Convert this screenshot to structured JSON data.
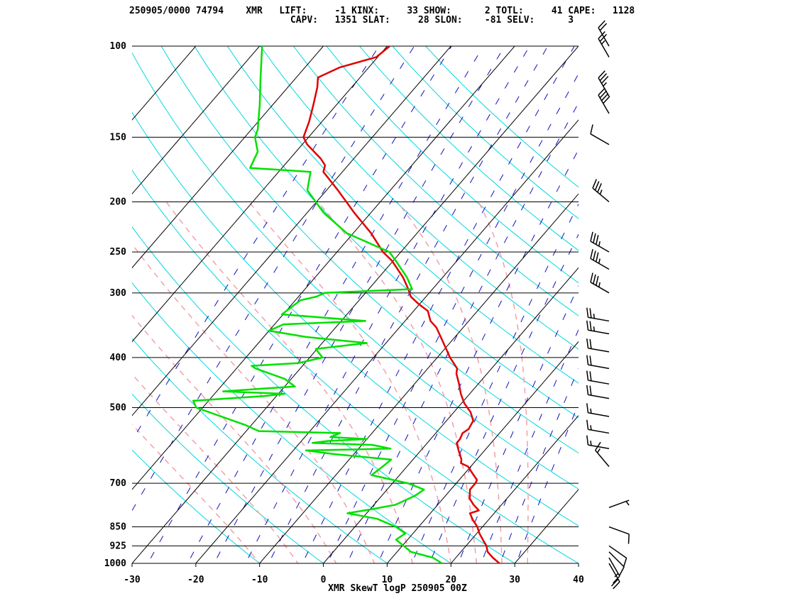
{
  "header": {
    "line1": "250905/0000 74794    XMR   LIFT:     -1 KINX:     33 SHOW:      2 TOTL:     41 CAPE:   1128",
    "line2": "                             CAPV:   1351 SLAT:     28 SLON:    -81 SELV:      3"
  },
  "caption": "XMR SkewT logP 250905 00Z",
  "colors": {
    "temperature": "#e00000",
    "dewpoint": "#00e000",
    "isotherm": "#000000",
    "isobar": "#000000",
    "dry_adiabat": "#00d8e0",
    "moist_adiabat": "#f4a0a8",
    "mixing_ratio": "#1010c0",
    "wind_barb": "#000000"
  },
  "chart_data": {
    "type": "line",
    "title": "",
    "xlabel": "",
    "ylabel": "",
    "x_scale": "skew-t",
    "y_scale": "log",
    "xlim": [
      -30,
      40
    ],
    "ylim": [
      1000,
      100
    ],
    "grid": true,
    "x_ticks": [
      "-30",
      "-20",
      "-10",
      "0",
      "10",
      "20",
      "30",
      "40"
    ],
    "y_ticks": [
      "100",
      "150",
      "200",
      "250",
      "300",
      "400",
      "500",
      "700",
      "850",
      "925",
      "1000"
    ],
    "y_tick_values": [
      100,
      150,
      200,
      250,
      300,
      400,
      500,
      700,
      850,
      925,
      1000
    ],
    "isotherms": [
      -110,
      -100,
      -90,
      -80,
      -70,
      -60,
      -50,
      -40,
      -30,
      -20,
      -10,
      0,
      10,
      20,
      30,
      40
    ],
    "dry_adiabats_theta_C": [
      -10,
      0,
      10,
      20,
      30,
      40,
      50,
      60,
      70,
      80,
      90,
      100,
      110,
      120,
      130,
      140,
      150
    ],
    "moist_adiabats_theta_w_C": [
      -10,
      -4,
      2,
      8,
      14,
      20,
      24,
      28,
      32
    ],
    "mixing_ratio_lines_g_kg": [
      0.1,
      0.2,
      0.4,
      0.7,
      1,
      1.5,
      2,
      3,
      4,
      5,
      7,
      10,
      12,
      16,
      20,
      24,
      28
    ],
    "series": [
      {
        "name": "",
        "role": "temperature",
        "points": [
          [
            1000,
            27.6
          ],
          [
            975,
            25.8
          ],
          [
            950,
            24.2
          ],
          [
            925,
            23.2
          ],
          [
            900,
            21.8
          ],
          [
            875,
            20.4
          ],
          [
            850,
            19.2
          ],
          [
            825,
            17.6
          ],
          [
            800,
            16.2
          ],
          [
            790,
            17.2
          ],
          [
            770,
            15.6
          ],
          [
            750,
            14.2
          ],
          [
            720,
            13.0
          ],
          [
            700,
            13.0
          ],
          [
            690,
            12.8
          ],
          [
            670,
            11.2
          ],
          [
            650,
            9.6
          ],
          [
            640,
            8.0
          ],
          [
            630,
            7.6
          ],
          [
            615,
            6.6
          ],
          [
            600,
            5.6
          ],
          [
            585,
            4.6
          ],
          [
            575,
            4.6
          ],
          [
            560,
            4.2
          ],
          [
            550,
            4.6
          ],
          [
            530,
            4.2
          ],
          [
            510,
            2.6
          ],
          [
            490,
            0.4
          ],
          [
            470,
            -1.4
          ],
          [
            450,
            -3.0
          ],
          [
            430,
            -4.8
          ],
          [
            420,
            -5.4
          ],
          [
            400,
            -8.0
          ],
          [
            370,
            -11.6
          ],
          [
            350,
            -14.2
          ],
          [
            340,
            -16.0
          ],
          [
            325,
            -17.8
          ],
          [
            315,
            -20.2
          ],
          [
            305,
            -22.4
          ],
          [
            295,
            -23.8
          ],
          [
            280,
            -26.2
          ],
          [
            260,
            -30.2
          ],
          [
            250,
            -32.8
          ],
          [
            230,
            -37.2
          ],
          [
            210,
            -42.6
          ],
          [
            190,
            -48.2
          ],
          [
            175,
            -53.0
          ],
          [
            170,
            -53.6
          ],
          [
            165,
            -55.2
          ],
          [
            155,
            -59.2
          ],
          [
            150,
            -60.8
          ],
          [
            140,
            -62.0
          ],
          [
            130,
            -63.6
          ],
          [
            120,
            -65.4
          ],
          [
            115,
            -66.6
          ],
          [
            110,
            -64.6
          ],
          [
            105,
            -60.2
          ],
          [
            100,
            -59.6
          ]
        ]
      },
      {
        "name": "",
        "role": "dewpoint",
        "points": [
          [
            1000,
            18.6
          ],
          [
            975,
            16.4
          ],
          [
            950,
            12.2
          ],
          [
            925,
            10.2
          ],
          [
            900,
            8.2
          ],
          [
            875,
            8.8
          ],
          [
            850,
            6.4
          ],
          [
            820,
            2.4
          ],
          [
            800,
            -3.0
          ],
          [
            785,
            0.4
          ],
          [
            770,
            3.4
          ],
          [
            740,
            5.2
          ],
          [
            720,
            5.8
          ],
          [
            700,
            2.4
          ],
          [
            675,
            -4.4
          ],
          [
            650,
            -3.8
          ],
          [
            630,
            -3.4
          ],
          [
            615,
            -13.0
          ],
          [
            605,
            -18.0
          ],
          [
            600,
            -5.0
          ],
          [
            590,
            -8.4
          ],
          [
            585,
            -18.0
          ],
          [
            580,
            -15.8
          ],
          [
            575,
            -10.0
          ],
          [
            570,
            -16.0
          ],
          [
            560,
            -15.0
          ],
          [
            555,
            -28.0
          ],
          [
            540,
            -31.0
          ],
          [
            500,
            -41.0
          ],
          [
            485,
            -42.4
          ],
          [
            475,
            -32.0
          ],
          [
            470,
            -29.0
          ],
          [
            465,
            -39.0
          ],
          [
            460,
            -34.0
          ],
          [
            455,
            -28.4
          ],
          [
            440,
            -31.0
          ],
          [
            420,
            -37.0
          ],
          [
            415,
            -38.0
          ],
          [
            410,
            -31.0
          ],
          [
            400,
            -28.0
          ],
          [
            385,
            -30.2
          ],
          [
            375,
            -23.0
          ],
          [
            365,
            -33.4
          ],
          [
            355,
            -40.0
          ],
          [
            345,
            -38.6
          ],
          [
            340,
            -26.2
          ],
          [
            330,
            -40.2
          ],
          [
            310,
            -39.2
          ],
          [
            305,
            -37.2
          ],
          [
            300,
            -36.4
          ],
          [
            295,
            -23.2
          ],
          [
            280,
            -25.6
          ],
          [
            260,
            -29.6
          ],
          [
            250,
            -31.8
          ],
          [
            230,
            -41.0
          ],
          [
            210,
            -47.4
          ],
          [
            190,
            -53.0
          ],
          [
            175,
            -55.0
          ],
          [
            172,
            -65.0
          ],
          [
            160,
            -66.0
          ],
          [
            150,
            -68.4
          ],
          [
            145,
            -69.0
          ],
          [
            130,
            -72.0
          ],
          [
            115,
            -75.6
          ],
          [
            100,
            -79.6
          ]
        ]
      }
    ],
    "wind_barbs_note": "wind barbs plotted at right edge",
    "wind_barbs": [
      {
        "p": 1000,
        "dir": 150,
        "kt": 20
      },
      {
        "p": 975,
        "dir": 150,
        "kt": 15
      },
      {
        "p": 950,
        "dir": 135,
        "kt": 10
      },
      {
        "p": 925,
        "dir": 125,
        "kt": 10
      },
      {
        "p": 850,
        "dir": 110,
        "kt": 10
      },
      {
        "p": 780,
        "dir": 70,
        "kt": 5
      },
      {
        "p": 650,
        "dir": 320,
        "kt": 15
      },
      {
        "p": 600,
        "dir": 280,
        "kt": 15
      },
      {
        "p": 560,
        "dir": 280,
        "kt": 15
      },
      {
        "p": 520,
        "dir": 280,
        "kt": 15
      },
      {
        "p": 480,
        "dir": 280,
        "kt": 20
      },
      {
        "p": 450,
        "dir": 280,
        "kt": 20
      },
      {
        "p": 420,
        "dir": 280,
        "kt": 20
      },
      {
        "p": 390,
        "dir": 280,
        "kt": 20
      },
      {
        "p": 360,
        "dir": 280,
        "kt": 25
      },
      {
        "p": 340,
        "dir": 280,
        "kt": 25
      },
      {
        "p": 300,
        "dir": 300,
        "kt": 35
      },
      {
        "p": 270,
        "dir": 300,
        "kt": 35
      },
      {
        "p": 250,
        "dir": 300,
        "kt": 35
      },
      {
        "p": 200,
        "dir": 310,
        "kt": 35
      },
      {
        "p": 155,
        "dir": 300,
        "kt": 10
      },
      {
        "p": 135,
        "dir": 330,
        "kt": 40
      },
      {
        "p": 125,
        "dir": 330,
        "kt": 35
      },
      {
        "p": 105,
        "dir": 330,
        "kt": 25
      },
      {
        "p": 100,
        "dir": 330,
        "kt": 20
      }
    ]
  }
}
